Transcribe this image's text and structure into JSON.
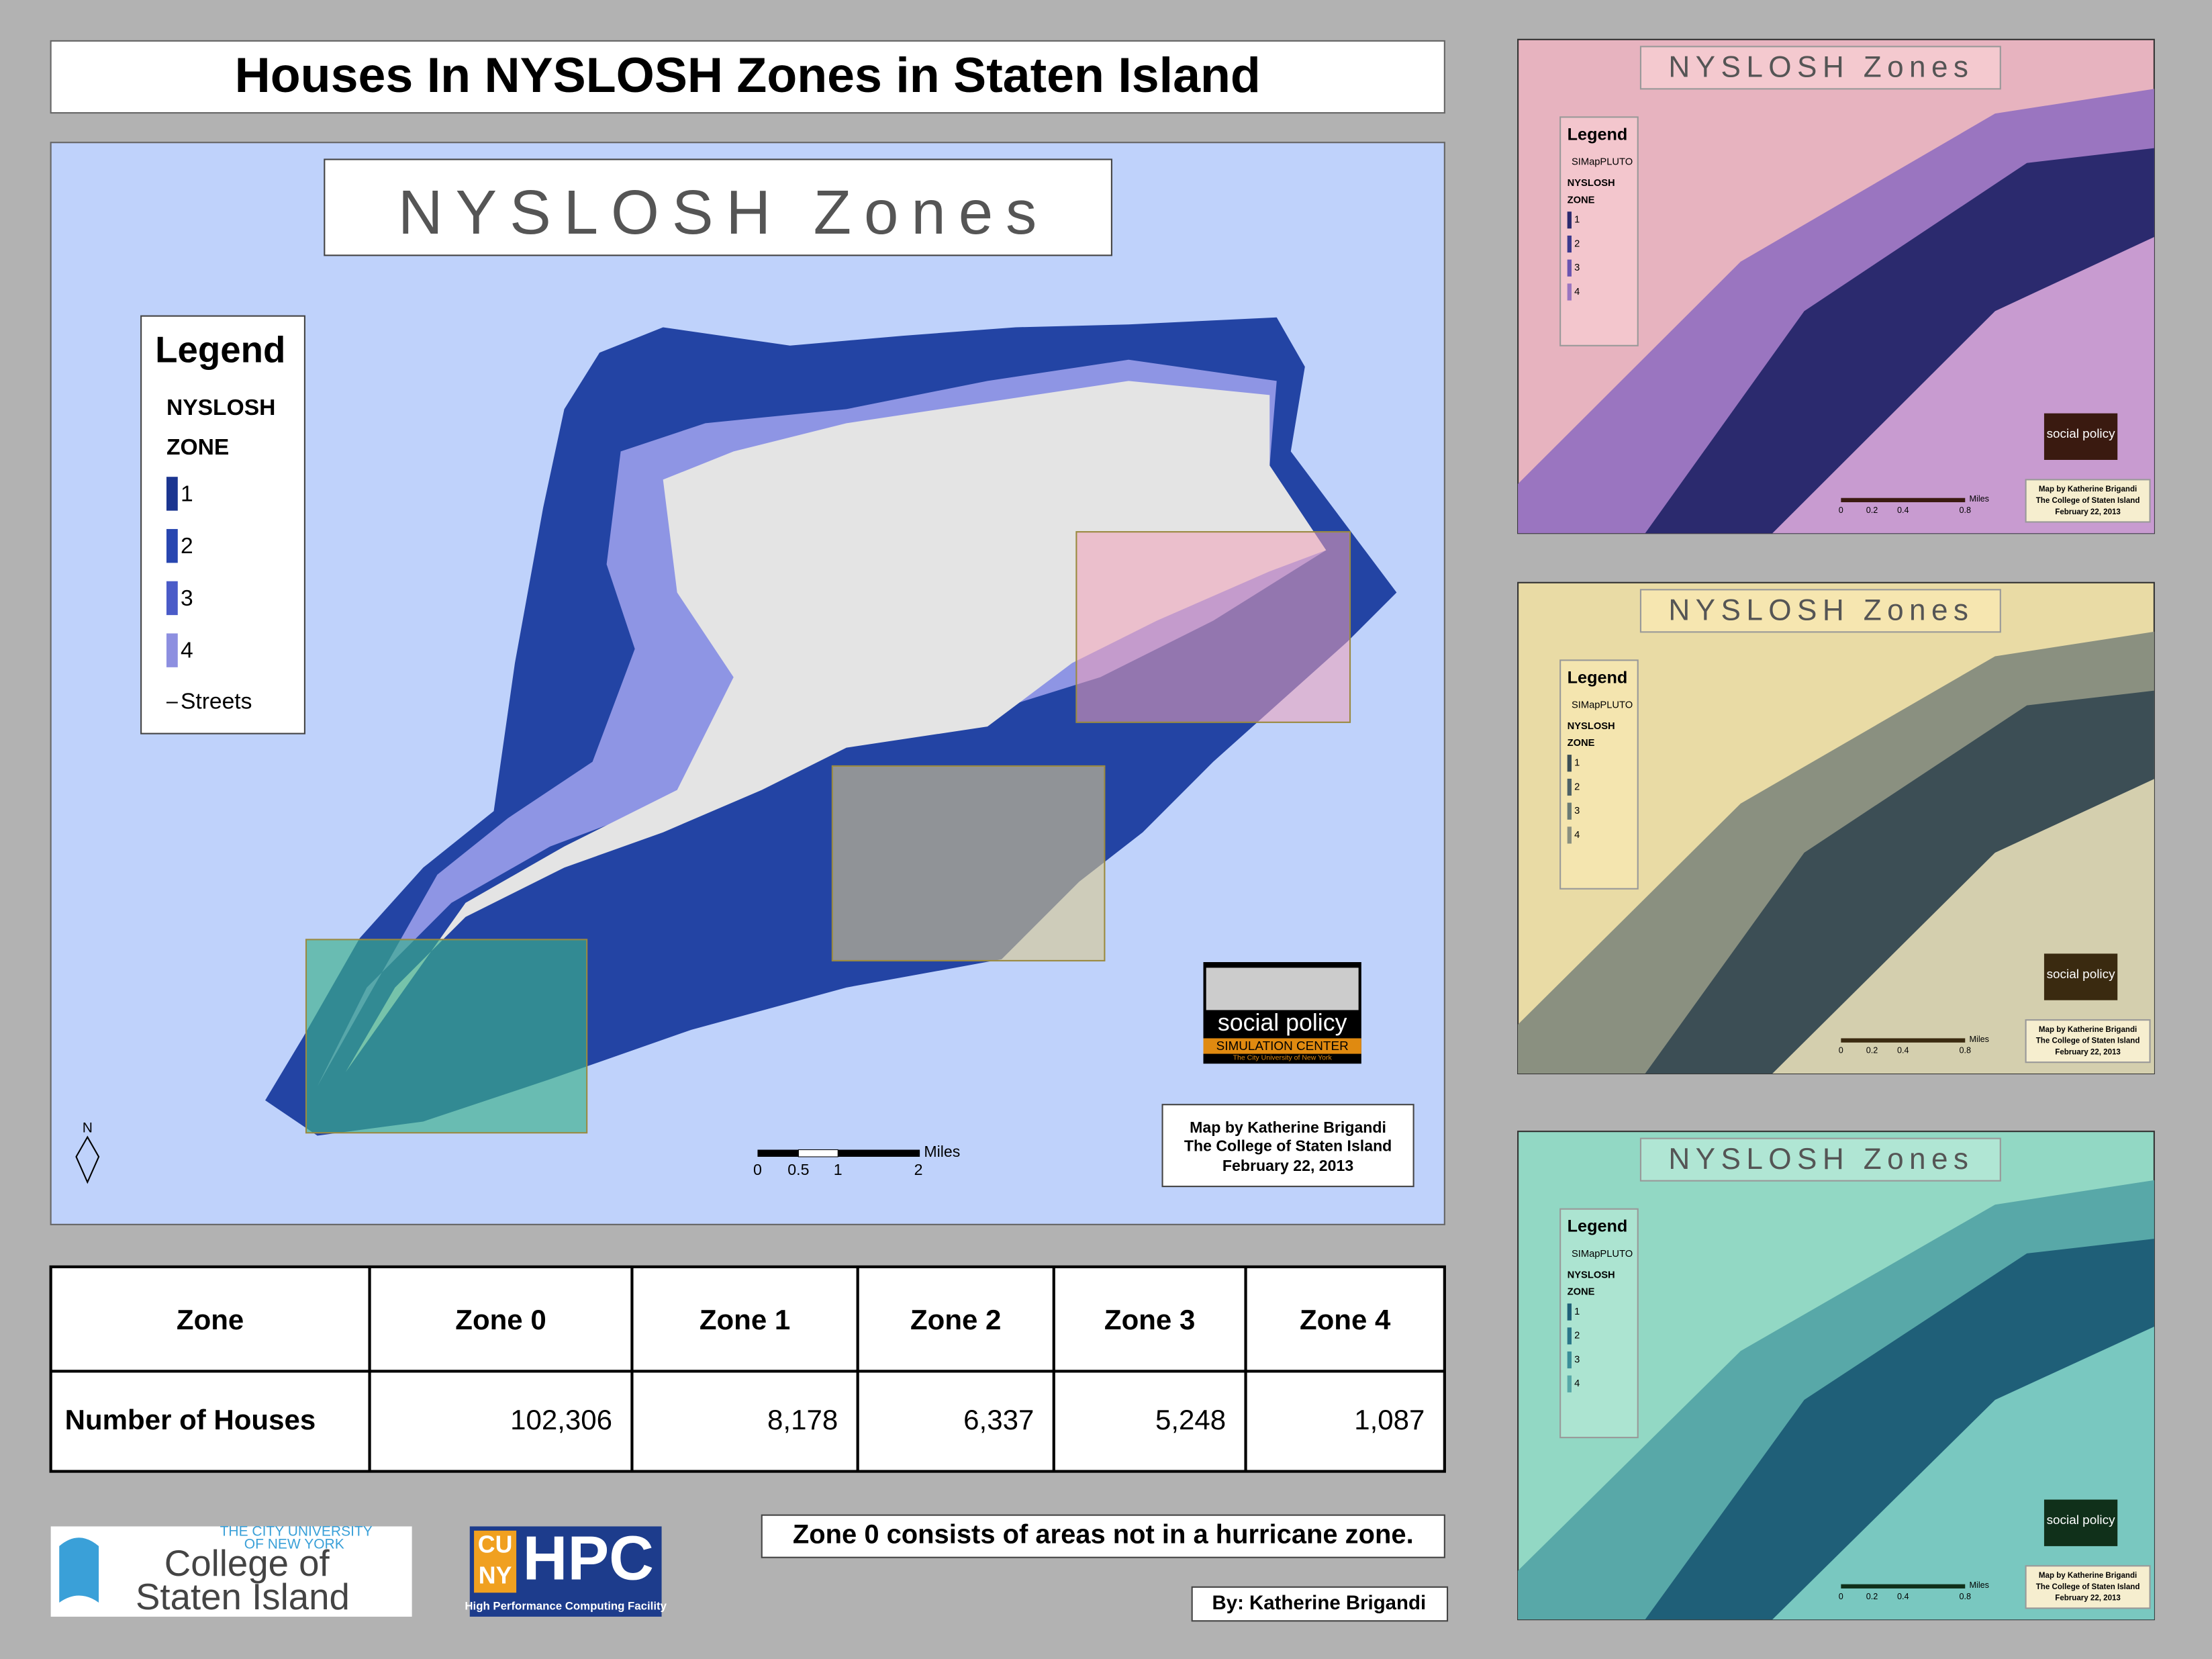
{
  "title": "Houses In NYSLOSH Zones in Staten Island",
  "main_map": {
    "title": "NYSLOSH Zones",
    "legend": {
      "title": "Legend",
      "field": "NYSLOSH",
      "field2": "ZONE",
      "items": [
        "1",
        "2",
        "3",
        "4"
      ],
      "streets": "Streets"
    },
    "north": "N",
    "scale": {
      "labels": [
        "0",
        "0.5",
        "1",
        "2"
      ],
      "unit": "Miles"
    },
    "credit": [
      "Map by Katherine Brigandi",
      "The College of Staten Island",
      "February 22, 2013"
    ],
    "logo": {
      "line1": "social policy",
      "line2": "SIMULATION CENTER",
      "line3": "The City University of New York"
    }
  },
  "table": {
    "header": [
      "Zone",
      "Zone 0",
      "Zone 1",
      "Zone 2",
      "Zone 3",
      "Zone 4"
    ],
    "rows": [
      [
        "Number of Houses",
        "102,306",
        "8,178",
        "6,337",
        "5,248",
        "1,087"
      ]
    ]
  },
  "note": "Zone 0 consists of areas not in a hurricane zone.",
  "byline": "By: Katherine Brigandi",
  "logos": {
    "csi": {
      "line1": "THE CITY UNIVERSITY",
      "line2": "OF NEW YORK",
      "line3": "College of",
      "line4": "Staten Island"
    },
    "hpc": {
      "cu": "CU",
      "ny": "NY",
      "name": "HPC",
      "sub": "High Performance Computing Facility"
    }
  },
  "insets": [
    {
      "title": "NYSLOSH Zones",
      "legend": {
        "title": "Legend",
        "layer": "SIMapPLUTO",
        "field": "NYSLOSH",
        "field2": "ZONE",
        "items": [
          "1",
          "2",
          "3",
          "4"
        ]
      },
      "scale": {
        "labels": [
          "0",
          "0.2",
          "0.4",
          "0.8"
        ],
        "unit": "Miles"
      },
      "credit": [
        "Map by Katherine Brigandi",
        "The College of Staten Island",
        "February 22, 2013"
      ],
      "logo": "social policy"
    },
    {
      "title": "NYSLOSH Zones",
      "legend": {
        "title": "Legend",
        "layer": "SIMapPLUTO",
        "field": "NYSLOSH",
        "field2": "ZONE",
        "items": [
          "1",
          "2",
          "3",
          "4"
        ]
      },
      "scale": {
        "labels": [
          "0",
          "0.2",
          "0.4",
          "0.8"
        ],
        "unit": "Miles"
      },
      "credit": [
        "Map by Katherine Brigandi",
        "The College of Staten Island",
        "February 22, 2013"
      ],
      "logo": "social policy"
    },
    {
      "title": "NYSLOSH Zones",
      "legend": {
        "title": "Legend",
        "layer": "SIMapPLUTO",
        "field": "NYSLOSH",
        "field2": "ZONE",
        "items": [
          "1",
          "2",
          "3",
          "4"
        ]
      },
      "scale": {
        "labels": [
          "0",
          "0.2",
          "0.4",
          "0.8"
        ],
        "unit": "Miles"
      },
      "credit": [
        "Map by Katherine Brigandi",
        "The College of Staten Island",
        "February 22, 2013"
      ],
      "logo": "social policy"
    }
  ]
}
